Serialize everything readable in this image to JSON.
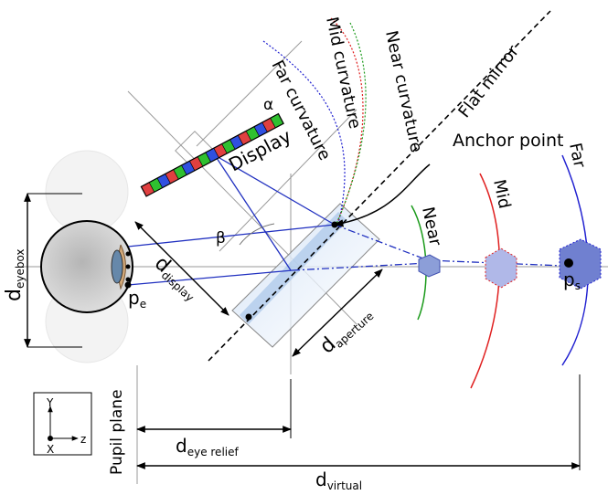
{
  "labels": {
    "flat_mirror": "Flat mirror",
    "mid_curvature": "Mid curvature",
    "near_curvature": "Near curvature",
    "far_curvature": "Far curvature",
    "display": "Display",
    "anchor_point": "Anchor point",
    "alpha": "α",
    "beta": "β",
    "near": "Near",
    "mid": "Mid",
    "far": "Far",
    "pupil_plane": "Pupil plane"
  },
  "dimensions": {
    "d_eyebox": {
      "base": "d",
      "sub": "eyebox"
    },
    "d_display": {
      "base": "d",
      "sub": "display"
    },
    "d_aperture": {
      "base": "d",
      "sub": "aperture"
    },
    "d_eye_relief": {
      "base": "d",
      "sub": "eye relief"
    },
    "d_virtual": {
      "base": "d",
      "sub": "virtual"
    }
  },
  "points": {
    "p_e": {
      "base": "p",
      "sub": "e"
    },
    "p_s": {
      "base": "p",
      "sub": "s"
    }
  },
  "axes": {
    "y": "Y",
    "x": "X",
    "z": "z"
  },
  "colors": {
    "near": "#1a9a1a",
    "mid": "#e02020",
    "far": "#2020d0",
    "ray": "#2030c0",
    "mirror_fill": "#a8c4e8",
    "eye_fill": "#c9c9c9",
    "display_cells": [
      "#e04040",
      "#30c030",
      "#3050e0",
      "#ffffff"
    ]
  }
}
